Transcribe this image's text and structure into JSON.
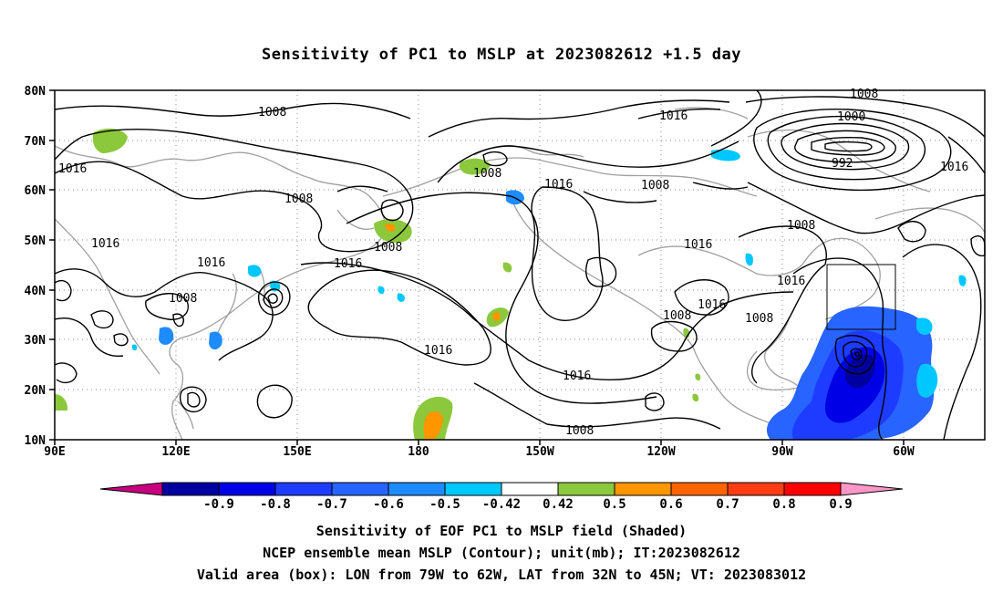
{
  "title": "Sensitivity of PC1 to MSLP at 2023082612 +1.5 day",
  "map": {
    "lat_labels": [
      "80N",
      "70N",
      "60N",
      "50N",
      "40N",
      "30N",
      "20N",
      "10N"
    ],
    "lon_labels": [
      "90E",
      "120E",
      "150E",
      "180",
      "150W",
      "120W",
      "90W",
      "60W"
    ],
    "contour_labels": [
      "1008",
      "1008",
      "1016",
      "1016",
      "1008",
      "1008",
      "1008",
      "1016",
      "1008",
      "1016",
      "1016",
      "1016",
      "1016",
      "1016",
      "1000",
      "992",
      "1016",
      "1008",
      "1008",
      "1016",
      "1016",
      "1008",
      "1008",
      "1008",
      "1016",
      "1008"
    ],
    "valid_box": {
      "lon": [
        "79W",
        "62W"
      ],
      "lat": [
        "32N",
        "45N"
      ]
    }
  },
  "colorbar": {
    "labels": [
      "-0.9",
      "-0.8",
      "-0.7",
      "-0.6",
      "-0.5",
      "-0.42",
      "0.42",
      "0.5",
      "0.6",
      "0.7",
      "0.8",
      "0.9"
    ],
    "colors": [
      "#c8007f",
      "#0000a0",
      "#0000e6",
      "#1e3cff",
      "#2864ff",
      "#1e8cff",
      "#00c8ff",
      "#ffffff",
      "#8cc83c",
      "#ff9600",
      "#ff6400",
      "#ff3c14",
      "#ff0000",
      "#ff96c8"
    ]
  },
  "caption": {
    "line1": "Sensitivity of EOF PC1 to MSLP field (Shaded)",
    "line2": "NCEP ensemble mean MSLP (Contour); unit(mb); IT:2023082612",
    "line3": "Valid area (box): LON from 79W to 62W, LAT from 32N to 45N; VT: 2023083012"
  }
}
